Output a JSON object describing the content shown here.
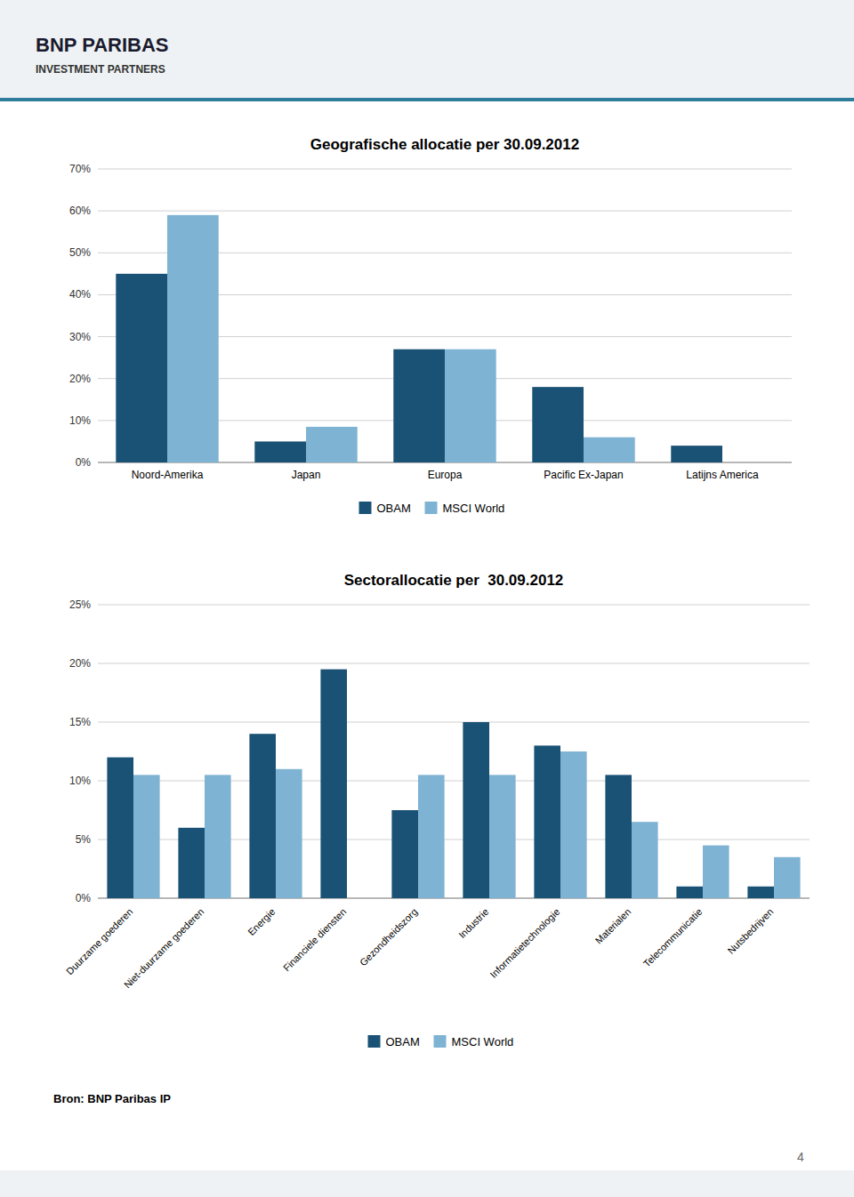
{
  "header_title": "BNP PARIBAS",
  "header_subtitle": "INVESTMENT PARTNERS",
  "source": "Bron: BNP Paribas IP",
  "page_number": "4",
  "chart_data": [
    {
      "type": "bar",
      "title": "Geografische allocatie per 30.09.2012",
      "categories": [
        "Noord-Amerika",
        "Japan",
        "Europa",
        "Pacific Ex-Japan",
        "Latijns America"
      ],
      "series": [
        {
          "name": "OBAM",
          "color": "#1a5276",
          "values": [
            45,
            5,
            27,
            18,
            4
          ]
        },
        {
          "name": "MSCI World",
          "color": "#7fb3d3",
          "values": [
            59,
            8.5,
            27,
            6,
            0
          ]
        }
      ],
      "ylim": [
        0,
        70
      ],
      "yticks": [
        {
          "value": 0,
          "label": "0%"
        },
        {
          "value": 10,
          "label": "10%"
        },
        {
          "value": 20,
          "label": "20%"
        },
        {
          "value": 30,
          "label": "30%"
        },
        {
          "value": 40,
          "label": "40%"
        },
        {
          "value": 50,
          "label": "50%"
        },
        {
          "value": 60,
          "label": "60%"
        },
        {
          "value": 70,
          "label": "70%"
        }
      ],
      "grid": true,
      "legend": "bottom"
    },
    {
      "type": "bar",
      "title": "Sectorallocatie per  30.09.2012",
      "categories": [
        "Duurzame goederen",
        "Niet-duurzame goederen",
        "Energie",
        "Financiele diensten",
        "Gezondheidszorg",
        "Industrie",
        "Informatietechnologie",
        "Materialen",
        "Telecommunicatie",
        "Nutsbedrijven"
      ],
      "series": [
        {
          "name": "OBAM",
          "color": "#1a5276",
          "values": [
            12,
            6,
            14,
            19.5,
            7.5,
            15,
            13,
            10.5,
            1,
            1
          ]
        },
        {
          "name": "MSCI World",
          "color": "#7fb3d3",
          "values": [
            10.5,
            10.5,
            11,
            0,
            10.5,
            10.5,
            12.5,
            6.5,
            4.5,
            3.5
          ]
        }
      ],
      "ylim": [
        0,
        25
      ],
      "yticks": [
        {
          "value": 0,
          "label": "0%"
        },
        {
          "value": 5,
          "label": "5%"
        },
        {
          "value": 10,
          "label": "10%"
        },
        {
          "value": 15,
          "label": "15%"
        },
        {
          "value": 20,
          "label": "20%"
        },
        {
          "value": 25,
          "label": "25%"
        }
      ],
      "grid": true,
      "legend": "bottom"
    }
  ]
}
